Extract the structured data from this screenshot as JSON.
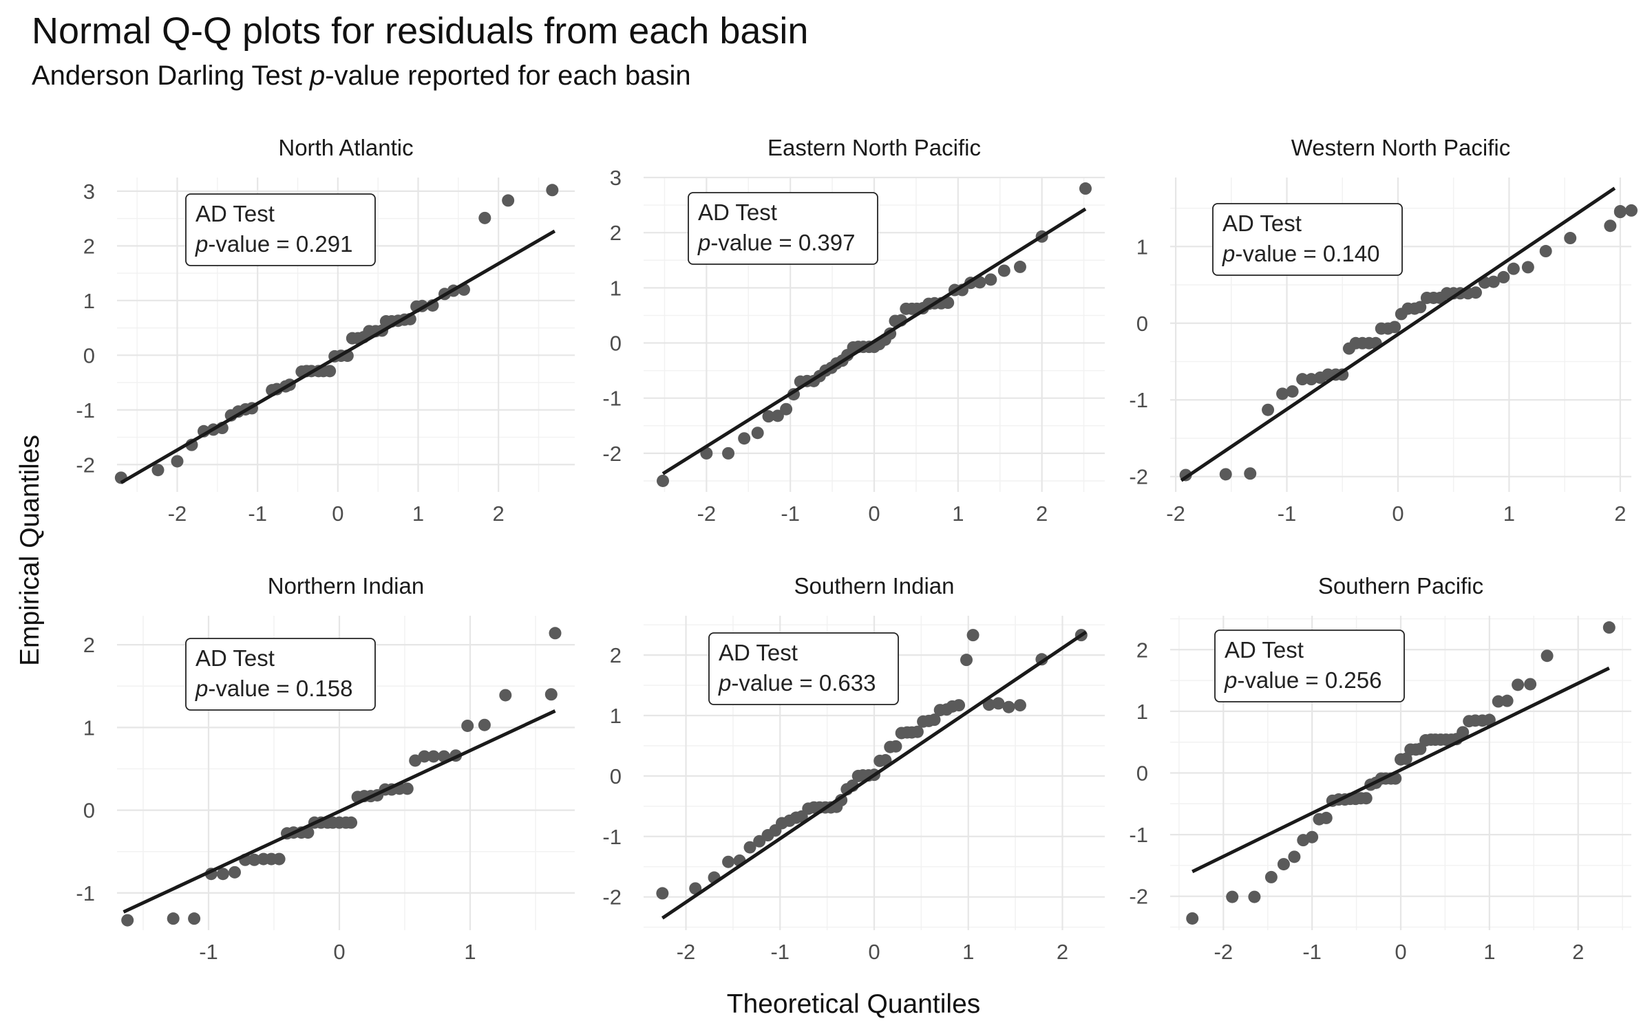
{
  "title": "Normal Q-Q plots for residuals from each basin",
  "subtitle_prefix": "Anderson Darling Test ",
  "subtitle_italic": "p",
  "subtitle_suffix": "-value reported for each basin",
  "xlabel": "Theoretical Quantiles",
  "ylabel": "Empirical Quantiles",
  "colors": {
    "point": "#5a5a5a",
    "line": "#1a1a1a",
    "grid_major": "#e6e6e6",
    "grid_minor": "#f2f2f2"
  },
  "chart_data": [
    {
      "type": "scatter",
      "title": "North Atlantic",
      "annotation": {
        "line1": "AD Test",
        "italic": "p",
        "rest": "-value = 0.291"
      },
      "xlim": [
        -2.75,
        2.95
      ],
      "ylim": [
        -2.5,
        3.25
      ],
      "xticks": [
        -2,
        -1,
        0,
        1,
        2
      ],
      "yticks": [
        -2,
        -1,
        0,
        1,
        2,
        3
      ],
      "ref_line": {
        "x1": -2.7,
        "y1": -2.33,
        "x2": 2.7,
        "y2": 2.27
      },
      "points": [
        [
          -2.7,
          -2.24
        ],
        [
          -2.24,
          -2.1
        ],
        [
          -2.0,
          -1.94
        ],
        [
          -1.82,
          -1.64
        ],
        [
          -1.67,
          -1.39
        ],
        [
          -1.55,
          -1.36
        ],
        [
          -1.44,
          -1.33
        ],
        [
          -1.33,
          -1.1
        ],
        [
          -1.24,
          -1.03
        ],
        [
          -1.15,
          -0.99
        ],
        [
          -1.07,
          -0.97
        ],
        [
          -0.82,
          -0.64
        ],
        [
          -0.76,
          -0.62
        ],
        [
          -0.65,
          -0.57
        ],
        [
          -0.6,
          -0.54
        ],
        [
          -0.45,
          -0.3
        ],
        [
          -0.39,
          -0.29
        ],
        [
          -0.33,
          -0.29
        ],
        [
          -0.24,
          -0.29
        ],
        [
          -0.18,
          -0.29
        ],
        [
          -0.1,
          -0.29
        ],
        [
          -0.04,
          -0.02
        ],
        [
          0.04,
          -0.01
        ],
        [
          0.12,
          -0.01
        ],
        [
          0.18,
          0.31
        ],
        [
          0.25,
          0.31
        ],
        [
          0.32,
          0.33
        ],
        [
          0.39,
          0.44
        ],
        [
          0.47,
          0.44
        ],
        [
          0.55,
          0.45
        ],
        [
          0.6,
          0.62
        ],
        [
          0.67,
          0.62
        ],
        [
          0.75,
          0.63
        ],
        [
          0.83,
          0.65
        ],
        [
          0.9,
          0.66
        ],
        [
          0.98,
          0.89
        ],
        [
          1.05,
          0.9
        ],
        [
          1.18,
          0.91
        ],
        [
          1.33,
          1.12
        ],
        [
          1.44,
          1.18
        ],
        [
          1.57,
          1.2
        ],
        [
          1.83,
          2.51
        ],
        [
          2.12,
          2.83
        ],
        [
          2.67,
          3.02
        ]
      ]
    },
    {
      "type": "scatter",
      "title": "Eastern North Pacific",
      "annotation": {
        "line1": "AD Test",
        "italic": "p",
        "rest": "-value = 0.397"
      },
      "xlim": [
        -2.75,
        2.75
      ],
      "ylim": [
        -2.7,
        3.0
      ],
      "xticks": [
        -2,
        -1,
        0,
        1,
        2
      ],
      "yticks": [
        -2,
        -1,
        0,
        1,
        2,
        3
      ],
      "ref_line": {
        "x1": -2.52,
        "y1": -2.37,
        "x2": 2.52,
        "y2": 2.43
      },
      "points": [
        [
          -2.52,
          -2.5
        ],
        [
          -2.0,
          -2.0
        ],
        [
          -1.74,
          -2.0
        ],
        [
          -1.55,
          -1.73
        ],
        [
          -1.39,
          -1.63
        ],
        [
          -1.26,
          -1.33
        ],
        [
          -1.15,
          -1.32
        ],
        [
          -1.05,
          -1.2
        ],
        [
          -0.96,
          -0.93
        ],
        [
          -0.88,
          -0.7
        ],
        [
          -0.8,
          -0.69
        ],
        [
          -0.72,
          -0.69
        ],
        [
          -0.65,
          -0.6
        ],
        [
          -0.58,
          -0.5
        ],
        [
          -0.51,
          -0.45
        ],
        [
          -0.45,
          -0.37
        ],
        [
          -0.38,
          -0.32
        ],
        [
          -0.32,
          -0.22
        ],
        [
          -0.25,
          -0.08
        ],
        [
          -0.19,
          -0.07
        ],
        [
          -0.13,
          -0.07
        ],
        [
          -0.06,
          -0.07
        ],
        [
          0.0,
          -0.07
        ],
        [
          0.06,
          -0.02
        ],
        [
          0.13,
          0.06
        ],
        [
          0.19,
          0.17
        ],
        [
          0.25,
          0.4
        ],
        [
          0.32,
          0.41
        ],
        [
          0.38,
          0.62
        ],
        [
          0.45,
          0.62
        ],
        [
          0.51,
          0.62
        ],
        [
          0.58,
          0.63
        ],
        [
          0.65,
          0.71
        ],
        [
          0.72,
          0.72
        ],
        [
          0.8,
          0.72
        ],
        [
          0.88,
          0.73
        ],
        [
          0.96,
          0.96
        ],
        [
          1.05,
          0.96
        ],
        [
          1.15,
          1.09
        ],
        [
          1.26,
          1.1
        ],
        [
          1.39,
          1.15
        ],
        [
          1.55,
          1.31
        ],
        [
          1.74,
          1.38
        ],
        [
          2.0,
          1.93
        ],
        [
          2.52,
          2.8
        ]
      ]
    },
    {
      "type": "scatter",
      "title": "Western North Pacific",
      "annotation": {
        "line1": "AD Test",
        "italic": "p",
        "rest": "-value = 0.140"
      },
      "xlim": [
        -2.05,
        2.1
      ],
      "ylim": [
        -2.2,
        1.9
      ],
      "xticks": [
        -2,
        -1,
        0,
        1,
        2
      ],
      "yticks": [
        -2,
        -1,
        0,
        1
      ],
      "ref_line": {
        "x1": -1.95,
        "y1": -2.05,
        "x2": 1.95,
        "y2": 1.76
      },
      "points": [
        [
          -1.91,
          -1.98
        ],
        [
          -1.55,
          -1.97
        ],
        [
          -1.33,
          -1.96
        ],
        [
          -1.17,
          -1.13
        ],
        [
          -1.04,
          -0.92
        ],
        [
          -0.95,
          -0.89
        ],
        [
          -0.86,
          -0.73
        ],
        [
          -0.78,
          -0.73
        ],
        [
          -0.7,
          -0.71
        ],
        [
          -0.63,
          -0.67
        ],
        [
          -0.56,
          -0.67
        ],
        [
          -0.5,
          -0.67
        ],
        [
          -0.44,
          -0.33
        ],
        [
          -0.38,
          -0.26
        ],
        [
          -0.32,
          -0.26
        ],
        [
          -0.26,
          -0.26
        ],
        [
          -0.2,
          -0.26
        ],
        [
          -0.15,
          -0.07
        ],
        [
          -0.09,
          -0.07
        ],
        [
          -0.03,
          -0.05
        ],
        [
          0.03,
          0.12
        ],
        [
          0.09,
          0.19
        ],
        [
          0.15,
          0.19
        ],
        [
          0.2,
          0.21
        ],
        [
          0.26,
          0.33
        ],
        [
          0.32,
          0.33
        ],
        [
          0.38,
          0.33
        ],
        [
          0.44,
          0.39
        ],
        [
          0.5,
          0.39
        ],
        [
          0.56,
          0.39
        ],
        [
          0.63,
          0.39
        ],
        [
          0.7,
          0.4
        ],
        [
          0.78,
          0.53
        ],
        [
          0.86,
          0.54
        ],
        [
          0.95,
          0.6
        ],
        [
          1.04,
          0.71
        ],
        [
          1.17,
          0.73
        ],
        [
          1.33,
          0.94
        ],
        [
          1.55,
          1.11
        ],
        [
          1.91,
          1.27
        ],
        [
          2.0,
          1.45
        ],
        [
          2.0,
          1.46
        ],
        [
          2.1,
          1.47
        ]
      ]
    },
    {
      "type": "scatter",
      "title": "Northern Indian",
      "annotation": {
        "line1": "AD Test",
        "italic": "p",
        "rest": "-value = 0.158"
      },
      "xlim": [
        -1.7,
        1.8
      ],
      "ylim": [
        -1.45,
        2.35
      ],
      "xticks": [
        -1,
        0,
        1
      ],
      "yticks": [
        -1,
        0,
        1,
        2
      ],
      "ref_line": {
        "x1": -1.65,
        "y1": -1.23,
        "x2": 1.65,
        "y2": 1.2
      },
      "points": [
        [
          -1.62,
          -1.33
        ],
        [
          -1.27,
          -1.31
        ],
        [
          -1.11,
          -1.31
        ],
        [
          -0.98,
          -0.77
        ],
        [
          -0.89,
          -0.77
        ],
        [
          -0.8,
          -0.75
        ],
        [
          -0.72,
          -0.6
        ],
        [
          -0.65,
          -0.6
        ],
        [
          -0.58,
          -0.59
        ],
        [
          -0.52,
          -0.59
        ],
        [
          -0.46,
          -0.59
        ],
        [
          -0.4,
          -0.28
        ],
        [
          -0.35,
          -0.27
        ],
        [
          -0.29,
          -0.27
        ],
        [
          -0.24,
          -0.27
        ],
        [
          -0.19,
          -0.15
        ],
        [
          -0.14,
          -0.15
        ],
        [
          -0.09,
          -0.15
        ],
        [
          -0.05,
          -0.15
        ],
        [
          0.0,
          -0.15
        ],
        [
          0.05,
          -0.15
        ],
        [
          0.09,
          -0.15
        ],
        [
          0.14,
          0.16
        ],
        [
          0.19,
          0.17
        ],
        [
          0.24,
          0.17
        ],
        [
          0.29,
          0.18
        ],
        [
          0.35,
          0.25
        ],
        [
          0.4,
          0.25
        ],
        [
          0.46,
          0.26
        ],
        [
          0.52,
          0.26
        ],
        [
          0.58,
          0.6
        ],
        [
          0.65,
          0.65
        ],
        [
          0.72,
          0.65
        ],
        [
          0.8,
          0.65
        ],
        [
          0.89,
          0.66
        ],
        [
          0.98,
          1.02
        ],
        [
          1.11,
          1.03
        ],
        [
          1.27,
          1.39
        ],
        [
          1.62,
          1.4
        ],
        [
          1.65,
          2.14
        ]
      ]
    },
    {
      "type": "scatter",
      "title": "Southern Indian",
      "annotation": {
        "line1": "AD Test",
        "italic": "p",
        "rest": "-value = 0.633"
      },
      "xlim": [
        -2.45,
        2.45
      ],
      "ylim": [
        -2.55,
        2.65
      ],
      "xticks": [
        -2,
        -1,
        0,
        1,
        2
      ],
      "yticks": [
        -2,
        -1,
        0,
        1,
        2
      ],
      "ref_line": {
        "x1": -2.25,
        "y1": -2.35,
        "x2": 2.25,
        "y2": 2.38
      },
      "points": [
        [
          -2.25,
          -1.94
        ],
        [
          -1.9,
          -1.86
        ],
        [
          -1.7,
          -1.68
        ],
        [
          -1.55,
          -1.42
        ],
        [
          -1.43,
          -1.4
        ],
        [
          -1.32,
          -1.18
        ],
        [
          -1.22,
          -1.08
        ],
        [
          -1.13,
          -0.98
        ],
        [
          -1.05,
          -0.9
        ],
        [
          -0.98,
          -0.78
        ],
        [
          -0.9,
          -0.74
        ],
        [
          -0.83,
          -0.69
        ],
        [
          -0.77,
          -0.67
        ],
        [
          -0.7,
          -0.54
        ],
        [
          -0.64,
          -0.52
        ],
        [
          -0.58,
          -0.52
        ],
        [
          -0.52,
          -0.52
        ],
        [
          -0.46,
          -0.52
        ],
        [
          -0.4,
          -0.51
        ],
        [
          -0.35,
          -0.4
        ],
        [
          -0.29,
          -0.22
        ],
        [
          -0.23,
          -0.16
        ],
        [
          -0.17,
          0.0
        ],
        [
          -0.12,
          0.01
        ],
        [
          -0.06,
          0.01
        ],
        [
          0.0,
          0.02
        ],
        [
          0.06,
          0.25
        ],
        [
          0.12,
          0.26
        ],
        [
          0.17,
          0.48
        ],
        [
          0.23,
          0.49
        ],
        [
          0.29,
          0.71
        ],
        [
          0.35,
          0.72
        ],
        [
          0.4,
          0.72
        ],
        [
          0.46,
          0.73
        ],
        [
          0.52,
          0.9
        ],
        [
          0.58,
          0.91
        ],
        [
          0.64,
          0.93
        ],
        [
          0.7,
          1.09
        ],
        [
          0.77,
          1.1
        ],
        [
          0.83,
          1.15
        ],
        [
          0.9,
          1.17
        ],
        [
          0.98,
          1.92
        ],
        [
          1.05,
          2.33
        ],
        [
          1.22,
          1.18
        ],
        [
          1.32,
          1.2
        ],
        [
          1.43,
          1.14
        ],
        [
          1.55,
          1.17
        ],
        [
          1.78,
          1.93
        ],
        [
          2.2,
          2.33
        ]
      ]
    },
    {
      "type": "scatter",
      "title": "Southern Pacific",
      "annotation": {
        "line1": "AD Test",
        "italic": "p",
        "rest": "-value = 0.256"
      },
      "xlim": [
        -2.6,
        2.6
      ],
      "ylim": [
        -2.55,
        2.55
      ],
      "xticks": [
        -2,
        -1,
        0,
        1,
        2
      ],
      "yticks": [
        -2,
        -1,
        0,
        1,
        2
      ],
      "ref_line": {
        "x1": -2.35,
        "y1": -1.6,
        "x2": 2.35,
        "y2": 1.7
      },
      "points": [
        [
          -2.35,
          -2.36
        ],
        [
          -1.9,
          -2.01
        ],
        [
          -1.65,
          -2.01
        ],
        [
          -1.46,
          -1.69
        ],
        [
          -1.32,
          -1.48
        ],
        [
          -1.2,
          -1.36
        ],
        [
          -1.1,
          -1.09
        ],
        [
          -1.0,
          -1.04
        ],
        [
          -0.92,
          -0.75
        ],
        [
          -0.84,
          -0.73
        ],
        [
          -0.77,
          -0.45
        ],
        [
          -0.7,
          -0.43
        ],
        [
          -0.63,
          -0.43
        ],
        [
          -0.57,
          -0.42
        ],
        [
          -0.51,
          -0.42
        ],
        [
          -0.45,
          -0.41
        ],
        [
          -0.39,
          -0.41
        ],
        [
          -0.34,
          -0.19
        ],
        [
          -0.28,
          -0.16
        ],
        [
          -0.22,
          -0.09
        ],
        [
          -0.17,
          -0.09
        ],
        [
          -0.11,
          -0.09
        ],
        [
          -0.06,
          -0.09
        ],
        [
          0.0,
          0.22
        ],
        [
          0.06,
          0.23
        ],
        [
          0.11,
          0.38
        ],
        [
          0.17,
          0.38
        ],
        [
          0.22,
          0.39
        ],
        [
          0.28,
          0.53
        ],
        [
          0.34,
          0.54
        ],
        [
          0.39,
          0.54
        ],
        [
          0.45,
          0.54
        ],
        [
          0.51,
          0.54
        ],
        [
          0.57,
          0.54
        ],
        [
          0.63,
          0.55
        ],
        [
          0.7,
          0.66
        ],
        [
          0.77,
          0.84
        ],
        [
          0.84,
          0.85
        ],
        [
          0.92,
          0.85
        ],
        [
          1.0,
          0.86
        ],
        [
          1.1,
          1.16
        ],
        [
          1.2,
          1.17
        ],
        [
          1.32,
          1.43
        ],
        [
          1.46,
          1.44
        ],
        [
          1.65,
          1.9
        ],
        [
          2.35,
          2.36
        ]
      ]
    }
  ]
}
